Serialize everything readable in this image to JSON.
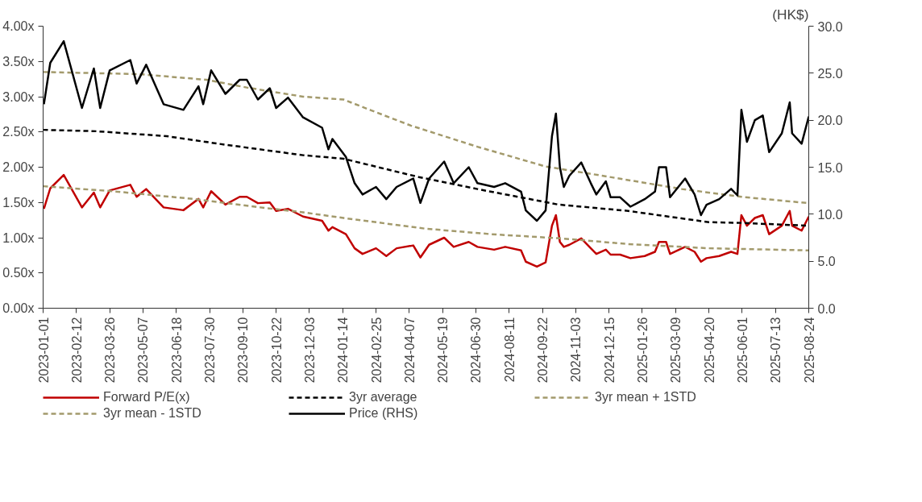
{
  "chart_data": {
    "type": "line",
    "y2label": "(HK$)",
    "legend": "bottom",
    "grid": false,
    "xlim": [
      "2023-01-01",
      "2025-08-24"
    ],
    "xticks": [
      "2023-01-01",
      "2023-02-12",
      "2023-03-26",
      "2023-05-07",
      "2023-06-18",
      "2023-07-30",
      "2023-09-10",
      "2023-10-22",
      "2023-12-03",
      "2024-01-14",
      "2024-02-25",
      "2024-04-07",
      "2024-05-19",
      "2024-06-30",
      "2024-08-11",
      "2024-09-22",
      "2024-11-03",
      "2024-12-15",
      "2025-01-26",
      "2025-03-09",
      "2025-04-20",
      "2025-06-01",
      "2025-07-13",
      "2025-08-24"
    ],
    "ylim": [
      0,
      4
    ],
    "yticks": [
      {
        "value": 0,
        "label": "0.00x"
      },
      {
        "value": 0.5,
        "label": "0.50x"
      },
      {
        "value": 1,
        "label": "1.00x"
      },
      {
        "value": 1.5,
        "label": "1.50x"
      },
      {
        "value": 2,
        "label": "2.00x"
      },
      {
        "value": 2.5,
        "label": "2.50x"
      },
      {
        "value": 3,
        "label": "3.00x"
      },
      {
        "value": 3.5,
        "label": "3.50x"
      },
      {
        "value": 4,
        "label": "4.00x"
      }
    ],
    "y2lim": [
      0,
      30
    ],
    "y2ticks": [
      {
        "value": 0,
        "label": "0.0"
      },
      {
        "value": 5,
        "label": "5.0"
      },
      {
        "value": 10,
        "label": "10.0"
      },
      {
        "value": 15,
        "label": "15.0"
      },
      {
        "value": 20,
        "label": "20.0"
      },
      {
        "value": 25,
        "label": "25.0"
      },
      {
        "value": 30,
        "label": "30.0"
      }
    ],
    "series": [
      {
        "name": "Forward P/E(x)",
        "color": "#c00000",
        "line_style": "solid",
        "x": [
          "2023-01-02",
          "2023-01-10",
          "2023-01-27",
          "2023-02-19",
          "2023-03-06",
          "2023-03-14",
          "2023-03-26",
          "2023-04-21",
          "2023-04-29",
          "2023-05-11",
          "2023-06-02",
          "2023-06-27",
          "2023-07-16",
          "2023-07-22",
          "2023-08-01",
          "2023-08-19",
          "2023-09-06",
          "2023-09-15",
          "2023-09-29",
          "2023-10-14",
          "2023-10-22",
          "2023-11-06",
          "2023-11-25",
          "2023-12-19",
          "2023-12-27",
          "2024-01-01",
          "2024-01-18",
          "2024-01-29",
          "2024-02-08",
          "2024-02-25",
          "2024-03-09",
          "2024-03-22",
          "2024-04-12",
          "2024-04-21",
          "2024-05-02",
          "2024-05-21",
          "2024-06-02",
          "2024-06-21",
          "2024-07-02",
          "2024-07-23",
          "2024-08-06",
          "2024-08-26",
          "2024-09-01",
          "2024-09-15",
          "2024-09-26",
          "2024-10-04",
          "2024-10-09",
          "2024-10-14",
          "2024-10-19",
          "2024-10-26",
          "2024-11-10",
          "2024-11-22",
          "2024-11-29",
          "2024-12-11",
          "2024-12-17",
          "2024-12-29",
          "2025-01-11",
          "2025-01-29",
          "2025-02-11",
          "2025-02-16",
          "2025-02-25",
          "2025-03-02",
          "2025-03-21",
          "2025-04-02",
          "2025-04-10",
          "2025-04-17",
          "2025-05-03",
          "2025-05-18",
          "2025-05-26",
          "2025-05-31",
          "2025-06-07",
          "2025-06-17",
          "2025-06-27",
          "2025-07-05",
          "2025-07-21",
          "2025-07-31",
          "2025-08-03",
          "2025-08-15",
          "2025-08-24"
        ],
        "values": [
          1.41,
          1.7,
          1.89,
          1.43,
          1.64,
          1.43,
          1.67,
          1.75,
          1.58,
          1.69,
          1.43,
          1.39,
          1.55,
          1.43,
          1.66,
          1.47,
          1.58,
          1.58,
          1.49,
          1.5,
          1.38,
          1.41,
          1.3,
          1.24,
          1.1,
          1.15,
          1.05,
          0.85,
          0.77,
          0.85,
          0.74,
          0.85,
          0.89,
          0.72,
          0.9,
          1.0,
          0.87,
          0.94,
          0.87,
          0.83,
          0.87,
          0.82,
          0.66,
          0.59,
          0.65,
          1.17,
          1.32,
          0.94,
          0.87,
          0.9,
          0.99,
          0.85,
          0.77,
          0.83,
          0.76,
          0.76,
          0.71,
          0.74,
          0.8,
          0.94,
          0.94,
          0.77,
          0.87,
          0.8,
          0.66,
          0.71,
          0.74,
          0.8,
          0.77,
          1.32,
          1.17,
          1.28,
          1.32,
          1.05,
          1.17,
          1.38,
          1.17,
          1.1,
          1.3
        ]
      },
      {
        "name": "3yr average",
        "color": "#000000",
        "line_style": "dashed",
        "x": [
          "2023-01-01",
          "2023-03-09",
          "2023-06-06",
          "2023-08-12",
          "2023-11-25",
          "2024-01-15",
          "2024-04-19",
          "2024-07-02",
          "2024-10-12",
          "2025-01-08",
          "2025-04-20",
          "2025-05-31",
          "2025-08-24"
        ],
        "values": [
          2.53,
          2.51,
          2.44,
          2.33,
          2.17,
          2.12,
          1.86,
          1.69,
          1.47,
          1.38,
          1.22,
          1.21,
          1.17
        ]
      },
      {
        "name": "3yr mean + 1STD",
        "color": "#a39a6c",
        "line_style": "dashed",
        "x": [
          "2023-01-01",
          "2023-05-02",
          "2023-07-26",
          "2023-09-15",
          "2023-11-25",
          "2024-01-15",
          "2024-02-18",
          "2024-04-09",
          "2024-07-02",
          "2024-09-26",
          "2024-12-06",
          "2025-03-17",
          "2025-05-31",
          "2025-08-24"
        ],
        "values": [
          3.35,
          3.32,
          3.24,
          3.13,
          3.0,
          2.96,
          2.81,
          2.59,
          2.29,
          2.01,
          1.88,
          1.69,
          1.58,
          1.49
        ]
      },
      {
        "name": "3yr mean - 1STD",
        "color": "#a39a6c",
        "line_style": "dashed",
        "x": [
          "2023-01-01",
          "2023-03-29",
          "2023-07-09",
          "2023-10-02",
          "2023-11-25",
          "2024-01-15",
          "2024-04-26",
          "2024-07-19",
          "2024-10-16",
          "2025-01-08",
          "2025-04-20",
          "2025-08-24"
        ],
        "values": [
          1.73,
          1.66,
          1.55,
          1.43,
          1.36,
          1.28,
          1.13,
          1.05,
          0.99,
          0.91,
          0.85,
          0.82
        ]
      },
      {
        "name": "Price (RHS)",
        "color": "#000000",
        "line_style": "solid",
        "axis": "y2",
        "x": [
          "2023-01-02",
          "2023-01-10",
          "2023-01-27",
          "2023-02-19",
          "2023-03-06",
          "2023-03-14",
          "2023-03-26",
          "2023-04-21",
          "2023-04-29",
          "2023-05-11",
          "2023-06-02",
          "2023-06-27",
          "2023-07-16",
          "2023-07-22",
          "2023-08-01",
          "2023-08-19",
          "2023-09-06",
          "2023-09-15",
          "2023-09-29",
          "2023-10-14",
          "2023-10-22",
          "2023-11-06",
          "2023-11-25",
          "2023-12-19",
          "2023-12-27",
          "2024-01-01",
          "2024-01-18",
          "2024-01-29",
          "2024-02-08",
          "2024-02-25",
          "2024-03-09",
          "2024-03-22",
          "2024-04-12",
          "2024-04-21",
          "2024-05-02",
          "2024-05-21",
          "2024-06-02",
          "2024-06-21",
          "2024-07-02",
          "2024-07-23",
          "2024-08-06",
          "2024-08-26",
          "2024-09-01",
          "2024-09-15",
          "2024-09-26",
          "2024-10-04",
          "2024-10-09",
          "2024-10-14",
          "2024-10-19",
          "2024-10-26",
          "2024-11-10",
          "2024-11-22",
          "2024-11-29",
          "2024-12-11",
          "2024-12-17",
          "2024-12-29",
          "2025-01-11",
          "2025-01-29",
          "2025-02-11",
          "2025-02-16",
          "2025-02-25",
          "2025-03-02",
          "2025-03-21",
          "2025-04-02",
          "2025-04-10",
          "2025-04-17",
          "2025-05-03",
          "2025-05-18",
          "2025-05-26",
          "2025-05-31",
          "2025-06-07",
          "2025-06-17",
          "2025-06-27",
          "2025-07-05",
          "2025-07-21",
          "2025-07-31",
          "2025-08-03",
          "2025-08-15",
          "2025-08-24"
        ],
        "values": [
          21.7,
          26.1,
          28.4,
          21.3,
          25.5,
          21.3,
          25.3,
          26.4,
          23.9,
          25.9,
          21.7,
          21.1,
          23.6,
          21.7,
          25.3,
          22.8,
          24.3,
          24.3,
          22.2,
          23.4,
          21.3,
          22.4,
          20.3,
          19.2,
          16.9,
          18.0,
          16.1,
          13.3,
          12.1,
          12.9,
          11.6,
          12.9,
          13.8,
          11.2,
          13.8,
          15.6,
          13.3,
          15.0,
          13.3,
          12.9,
          13.3,
          12.4,
          10.4,
          9.3,
          10.4,
          18.3,
          20.7,
          15.0,
          12.9,
          14.1,
          15.5,
          13.3,
          12.1,
          13.5,
          11.8,
          11.8,
          10.8,
          11.6,
          12.4,
          15.0,
          15.0,
          11.8,
          13.8,
          12.1,
          9.9,
          11.0,
          11.6,
          12.7,
          12.0,
          21.1,
          17.7,
          20.0,
          20.5,
          16.6,
          18.6,
          21.9,
          18.6,
          17.5,
          20.4
        ]
      }
    ]
  }
}
